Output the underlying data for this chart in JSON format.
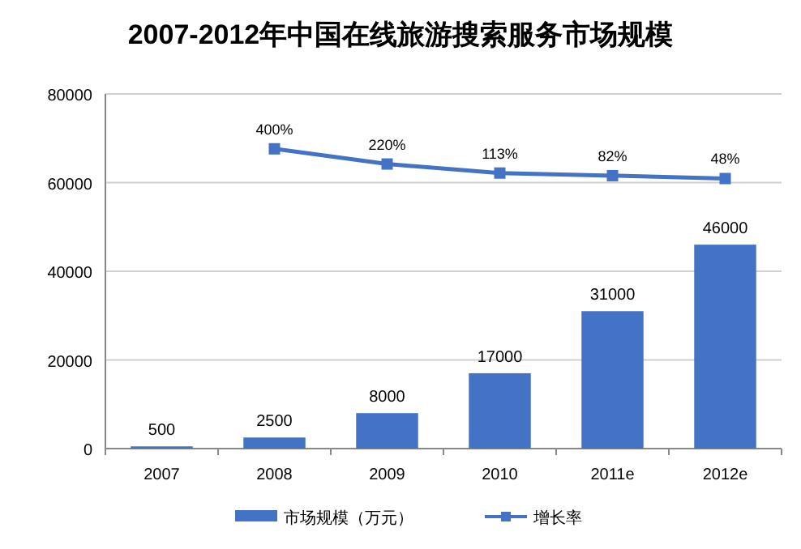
{
  "chart_data": {
    "type": "bar",
    "title": "2007-2012年中国在线旅游搜索服务市场规模",
    "categories": [
      "2007",
      "2008",
      "2009",
      "2010",
      "2011e",
      "2012e"
    ],
    "series": [
      {
        "name": "市场规模（万元）",
        "color": "#4472c4",
        "values": [
          500,
          2500,
          8000,
          17000,
          31000,
          46000
        ],
        "data_labels": true
      },
      {
        "name": "增长率",
        "type": "line",
        "axis": "y2",
        "color": "#4472c4",
        "values": [
          null,
          400,
          220,
          113,
          82,
          48
        ],
        "value_labels": [
          null,
          "400%",
          "220%",
          "113%",
          "82%",
          "48%"
        ]
      }
    ],
    "ylim": [
      0,
      80000
    ],
    "yticks": [
      0,
      20000,
      40000,
      60000,
      80000
    ],
    "y2lim": [
      -3150,
      1050
    ],
    "tick_labels": "xy",
    "grid": "y",
    "legend": "bottom",
    "marker": "square"
  }
}
